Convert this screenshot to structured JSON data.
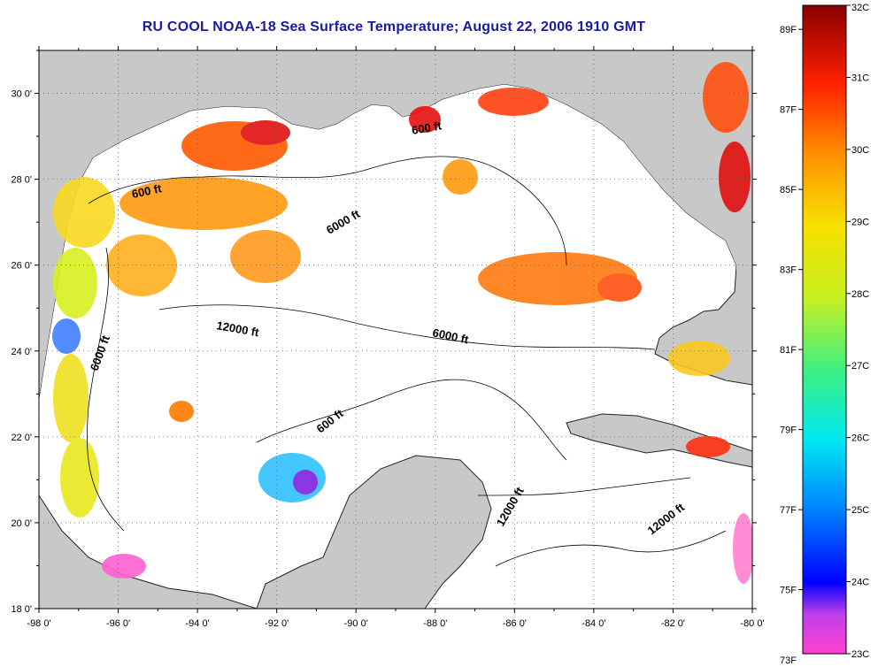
{
  "title": "RU COOL  NOAA-18  Sea Surface Temperature;  August 22, 2006 1910 GMT",
  "map": {
    "lon_ticks": [
      "-98 0'",
      "-96 0'",
      "-94 0'",
      "-92 0'",
      "-90 0'",
      "-88 0'",
      "-86 0'",
      "-84 0'",
      "-82 0'",
      "-80 0'"
    ],
    "lat_ticks": [
      "30 0'",
      "28 0'",
      "26 0'",
      "24 0'",
      "22 0'",
      "20 0'",
      "18 0'"
    ],
    "contour_labels": [
      "600 ft",
      "600 ft",
      "6000 ft",
      "12000 ft",
      "6000 ft",
      "6000 ft",
      "600 ft",
      "12000 ft",
      "12000 ft"
    ],
    "colors": {
      "land": "#c8c8c8",
      "ocean": "#ffffff",
      "grid": "#666666"
    }
  },
  "colorbar": {
    "fahrenheit_labels": [
      "89F",
      "87F",
      "85F",
      "83F",
      "81F",
      "79F",
      "77F",
      "75F",
      "73F"
    ],
    "celsius_labels": [
      "32C",
      "31C",
      "30C",
      "29C",
      "28C",
      "27C",
      "26C",
      "25C",
      "24C",
      "23C"
    ],
    "range_c": [
      23,
      32
    ]
  },
  "chart_data": {
    "type": "heatmap",
    "title": "RU COOL  NOAA-18  Sea Surface Temperature;  August 22, 2006 1910 GMT",
    "xlabel": "",
    "ylabel": "",
    "xlim": [
      -98,
      -80
    ],
    "ylim": [
      18,
      31
    ],
    "value_range_c": [
      23,
      32
    ],
    "value_range_f": [
      73,
      89.6
    ],
    "grid": true,
    "legend": "right"
  }
}
